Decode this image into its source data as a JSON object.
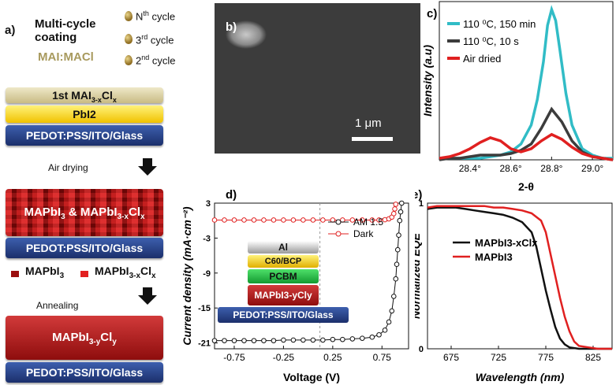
{
  "panel_a": {
    "letter": "a)",
    "title_line1": "Multi-cycle",
    "title_line2": "coating",
    "ratio_label": "MAI:MACl",
    "cycles": [
      {
        "base": "N",
        "sup": "th",
        "rest": " cycle"
      },
      {
        "base": "3",
        "sup": "rd",
        "rest": " cycle"
      },
      {
        "base": "2",
        "sup": "nd",
        "rest": " cycle"
      }
    ],
    "stack1": {
      "top": {
        "pre": "1st MAI",
        "sub": "3-x",
        "mid": "Cl",
        "sub2": "x"
      },
      "middle": "PbI2",
      "bottom": "PEDOT:PSS/ITO/Glass"
    },
    "step1": "Air drying",
    "stack2": {
      "top": {
        "a": "MAPbI",
        "a_sub": "3",
        "amp": " & ",
        "b": "MAPbI",
        "b_sub": "3-x",
        "c": "Cl",
        "c_sub": "x"
      },
      "bottom": "PEDOT:PSS/ITO/Glass"
    },
    "legend": {
      "first": {
        "main": "MAPbI",
        "sub": "3"
      },
      "second": {
        "main": "MAPbI",
        "sub": "3-x",
        "tail": "Cl",
        "sub2": "x"
      },
      "first_color": "#9b0f0f",
      "second_color": "#e21f1f"
    },
    "step2": "Annealing",
    "stack3": {
      "top": {
        "main": "MAPbI",
        "sub": "3-y",
        "tail": "Cl",
        "sub2": "y"
      },
      "bottom": "PEDOT:PSS/ITO/Glass"
    }
  },
  "panel_b": {
    "letter": "b)",
    "scale_bar": "1 μm"
  },
  "chart_data": [
    {
      "id": "c",
      "type": "line",
      "letter": "c)",
      "xlabel": "2-θ",
      "ylabel": "Intensity (a.u)",
      "xlim": [
        28.25,
        29.1
      ],
      "xticks": [
        "28.4°",
        "28.6°",
        "28.8°",
        "29.0°"
      ],
      "xtick_values": [
        28.4,
        28.6,
        28.8,
        29.0
      ],
      "series": [
        {
          "name": "110 ⁰C, 150 min",
          "color": "#31bcc6",
          "x": [
            28.25,
            28.3,
            28.35,
            28.4,
            28.45,
            28.5,
            28.55,
            28.6,
            28.65,
            28.7,
            28.73,
            28.76,
            28.78,
            28.8,
            28.82,
            28.84,
            28.87,
            28.9,
            28.95,
            29.0,
            29.05,
            29.1
          ],
          "y": [
            0.01,
            0.01,
            0.01,
            0.01,
            0.01,
            0.02,
            0.03,
            0.05,
            0.1,
            0.22,
            0.38,
            0.62,
            0.85,
            0.95,
            0.88,
            0.7,
            0.42,
            0.22,
            0.07,
            0.03,
            0.01,
            0.01
          ]
        },
        {
          "name": "110 ⁰C, 10 s",
          "color": "#3c3c3c",
          "x": [
            28.25,
            28.3,
            28.35,
            28.4,
            28.45,
            28.5,
            28.55,
            28.6,
            28.65,
            28.7,
            28.75,
            28.8,
            28.85,
            28.9,
            28.95,
            29.0,
            29.05,
            29.1
          ],
          "y": [
            0.0,
            0.01,
            0.01,
            0.02,
            0.03,
            0.03,
            0.03,
            0.04,
            0.06,
            0.1,
            0.2,
            0.32,
            0.24,
            0.12,
            0.05,
            0.02,
            0.01,
            0.0
          ]
        },
        {
          "name": "Air dried",
          "color": "#e02020",
          "x": [
            28.25,
            28.3,
            28.35,
            28.4,
            28.45,
            28.5,
            28.55,
            28.6,
            28.65,
            28.7,
            28.75,
            28.8,
            28.85,
            28.9,
            28.95,
            29.0,
            29.05,
            29.1
          ],
          "y": [
            0.01,
            0.02,
            0.04,
            0.07,
            0.11,
            0.14,
            0.12,
            0.07,
            0.05,
            0.07,
            0.12,
            0.16,
            0.13,
            0.08,
            0.04,
            0.02,
            0.01,
            0.0
          ]
        }
      ]
    },
    {
      "id": "d",
      "type": "line",
      "letter": "d)",
      "xlabel": "Voltage (V)",
      "ylabel": "Current density (mA·cm⁻²)",
      "xlim": [
        -0.95,
        1.02
      ],
      "ylim": [
        -22,
        3
      ],
      "xticks": [
        "-0.75",
        "-0.25",
        "0.25",
        "0.75"
      ],
      "xtick_values": [
        -0.75,
        -0.25,
        0.25,
        0.75
      ],
      "yticks": [
        "3",
        "-3",
        "-9",
        "-15",
        "-21"
      ],
      "ytick_values": [
        3,
        -3,
        -9,
        -15,
        -21
      ],
      "series": [
        {
          "name": "AM 1.5",
          "color": "#111111",
          "x": [
            -0.95,
            -0.85,
            -0.75,
            -0.65,
            -0.55,
            -0.45,
            -0.35,
            -0.25,
            -0.15,
            -0.05,
            0.05,
            0.15,
            0.25,
            0.35,
            0.45,
            0.55,
            0.65,
            0.72,
            0.78,
            0.82,
            0.85,
            0.87,
            0.89,
            0.9,
            0.91,
            0.92,
            0.93,
            0.94,
            0.95
          ],
          "y": [
            -20.6,
            -20.6,
            -20.6,
            -20.6,
            -20.6,
            -20.6,
            -20.6,
            -20.5,
            -20.5,
            -20.5,
            -20.5,
            -20.5,
            -20.4,
            -20.4,
            -20.3,
            -20.2,
            -20.0,
            -19.6,
            -18.8,
            -17.4,
            -15.5,
            -13.0,
            -10.0,
            -7.5,
            -5.0,
            -2.5,
            0.0,
            1.5,
            3.0
          ]
        },
        {
          "name": "Dark",
          "color": "#e02020",
          "x": [
            -0.95,
            -0.85,
            -0.75,
            -0.65,
            -0.55,
            -0.45,
            -0.35,
            -0.25,
            -0.15,
            -0.05,
            0.05,
            0.15,
            0.25,
            0.35,
            0.45,
            0.55,
            0.65,
            0.72,
            0.78,
            0.82,
            0.85,
            0.87,
            0.88,
            0.89
          ],
          "y": [
            0.1,
            0.1,
            0.1,
            0.1,
            0.1,
            0.1,
            0.1,
            0.1,
            0.1,
            0.1,
            0.1,
            0.1,
            0.1,
            0.1,
            0.1,
            0.1,
            0.1,
            0.1,
            0.15,
            0.3,
            0.6,
            1.2,
            2.0,
            2.8
          ]
        }
      ],
      "inset_stack": [
        "Al",
        "C60/BCP",
        "PCBM",
        "MAPbI3-yCly",
        "PEDOT:PSS/ITO/Glass"
      ]
    },
    {
      "id": "e",
      "type": "line",
      "letter": "e)",
      "xlabel": "Wavelength (nm)",
      "ylabel": "Normalized EQE",
      "xlim": [
        650,
        845
      ],
      "ylim": [
        0,
        1
      ],
      "xticks": [
        "675",
        "725",
        "775",
        "825"
      ],
      "xtick_values": [
        675,
        725,
        775,
        825
      ],
      "yticks": [
        "1",
        "0"
      ],
      "ytick_values": [
        1,
        0
      ],
      "series": [
        {
          "name": "MAPbI3-xClx",
          "color": "#111111",
          "x": [
            650,
            660,
            670,
            680,
            690,
            700,
            710,
            720,
            730,
            740,
            750,
            760,
            765,
            770,
            775,
            780,
            785,
            790,
            795,
            800,
            810,
            820,
            830,
            845
          ],
          "y": [
            0.96,
            0.97,
            0.97,
            0.97,
            0.96,
            0.95,
            0.94,
            0.93,
            0.92,
            0.9,
            0.87,
            0.8,
            0.7,
            0.55,
            0.4,
            0.27,
            0.15,
            0.07,
            0.03,
            0.01,
            0.0,
            0.0,
            0.0,
            0.0
          ]
        },
        {
          "name": "MAPbI3",
          "color": "#e02020",
          "x": [
            650,
            660,
            670,
            680,
            690,
            700,
            710,
            720,
            730,
            740,
            750,
            760,
            770,
            775,
            780,
            785,
            790,
            795,
            800,
            805,
            810,
            820,
            830,
            845
          ],
          "y": [
            0.97,
            0.98,
            0.98,
            0.98,
            0.98,
            0.98,
            0.98,
            0.97,
            0.97,
            0.96,
            0.95,
            0.93,
            0.88,
            0.8,
            0.65,
            0.5,
            0.35,
            0.22,
            0.12,
            0.05,
            0.02,
            0.01,
            0.0,
            0.0
          ]
        }
      ]
    }
  ]
}
